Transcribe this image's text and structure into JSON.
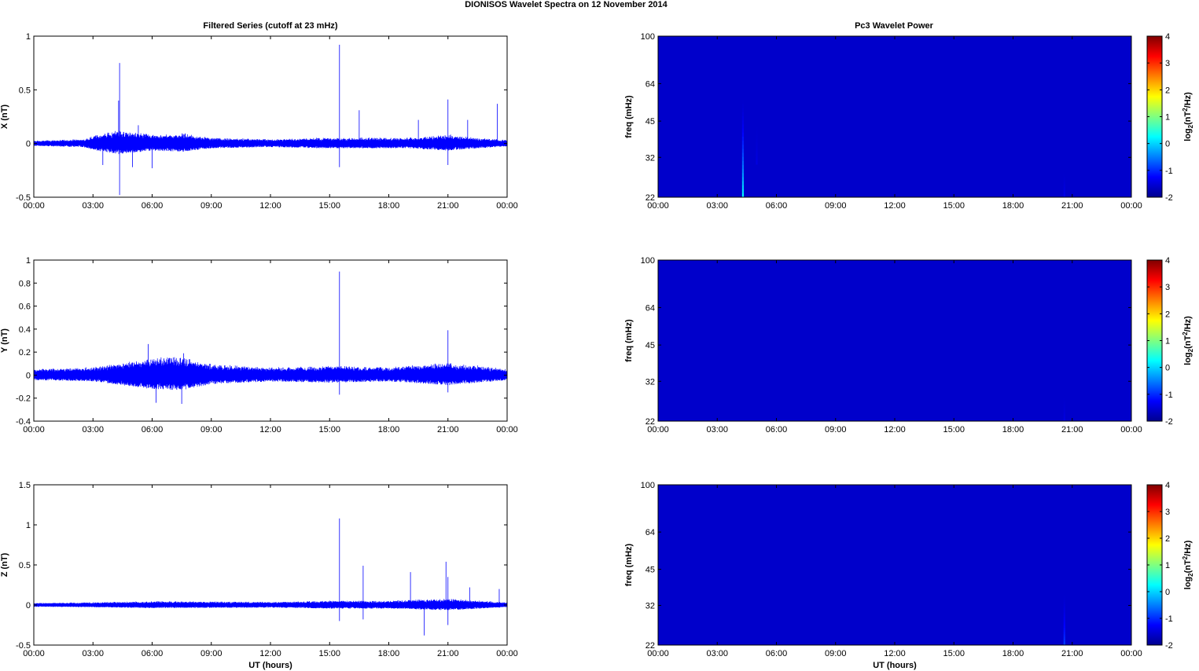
{
  "figure": {
    "title": "DIONISOS Wavelet Spectra on 12 November  2014",
    "left_column_title": "Filtered Series (cutoff at 23 mHz)",
    "right_column_title": "Pc3 Wavelet Power"
  },
  "colors": {
    "trace": "#0000ff",
    "spectrum_background": "#00008f",
    "axes": "#000000"
  },
  "chart_data": [
    {
      "type": "line",
      "id": "x",
      "ylabel": "X (nT)",
      "xlabel": "",
      "xlim": [
        0,
        24
      ],
      "ylim": [
        -0.5,
        1
      ],
      "yticks": [
        -0.5,
        0,
        0.5,
        1
      ],
      "ytick_labels": [
        "-0.5",
        "0",
        "0.5",
        "1"
      ],
      "xticks": [
        0,
        3,
        6,
        9,
        12,
        15,
        18,
        21,
        24
      ],
      "xtick_labels": [
        "00:00",
        "03:00",
        "06:00",
        "09:00",
        "12:00",
        "15:00",
        "18:00",
        "21:00",
        "00:00"
      ],
      "noise": [
        [
          0,
          0.02
        ],
        [
          2.5,
          0.03
        ],
        [
          3.2,
          0.06
        ],
        [
          4.3,
          0.09
        ],
        [
          6.0,
          0.06
        ],
        [
          7.5,
          0.07
        ],
        [
          9.0,
          0.04
        ],
        [
          12.0,
          0.03
        ],
        [
          14.5,
          0.04
        ],
        [
          16.5,
          0.04
        ],
        [
          19.0,
          0.04
        ],
        [
          21.0,
          0.06
        ],
        [
          22.5,
          0.04
        ],
        [
          24,
          0.025
        ]
      ],
      "spikes": [
        [
          4.35,
          0.75
        ],
        [
          4.35,
          -0.48
        ],
        [
          4.3,
          0.4
        ],
        [
          3.5,
          -0.2
        ],
        [
          5.0,
          -0.22
        ],
        [
          5.3,
          0.17
        ],
        [
          6.0,
          -0.23
        ],
        [
          15.5,
          0.92
        ],
        [
          15.5,
          -0.22
        ],
        [
          16.5,
          0.31
        ],
        [
          19.5,
          0.22
        ],
        [
          21.0,
          0.41
        ],
        [
          21.0,
          -0.2
        ],
        [
          22.0,
          0.22
        ],
        [
          23.5,
          0.37
        ]
      ]
    },
    {
      "type": "line",
      "id": "y",
      "ylabel": "Y (nT)",
      "xlabel": "",
      "xlim": [
        0,
        24
      ],
      "ylim": [
        -0.4,
        1
      ],
      "yticks": [
        -0.4,
        -0.2,
        0,
        0.2,
        0.4,
        0.6,
        0.8,
        1
      ],
      "ytick_labels": [
        "-0.4",
        "-0.2",
        "0",
        "0.2",
        "0.4",
        "0.6",
        "0.8",
        "1"
      ],
      "xticks": [
        0,
        3,
        6,
        9,
        12,
        15,
        18,
        21,
        24
      ],
      "xtick_labels": [
        "00:00",
        "03:00",
        "06:00",
        "09:00",
        "12:00",
        "15:00",
        "18:00",
        "21:00",
        "00:00"
      ],
      "noise": [
        [
          0,
          0.04
        ],
        [
          3.0,
          0.05
        ],
        [
          5.0,
          0.09
        ],
        [
          6.0,
          0.11
        ],
        [
          7.5,
          0.12
        ],
        [
          9.0,
          0.07
        ],
        [
          12.0,
          0.05
        ],
        [
          15.0,
          0.06
        ],
        [
          18.0,
          0.05
        ],
        [
          21.0,
          0.08
        ],
        [
          24,
          0.04
        ]
      ],
      "spikes": [
        [
          5.8,
          0.27
        ],
        [
          6.2,
          -0.24
        ],
        [
          7.5,
          -0.25
        ],
        [
          7.6,
          0.19
        ],
        [
          15.5,
          0.9
        ],
        [
          15.5,
          -0.17
        ],
        [
          21.0,
          0.39
        ],
        [
          21.0,
          -0.15
        ]
      ]
    },
    {
      "type": "line",
      "id": "z",
      "ylabel": "Z (nT)",
      "xlabel": "UT (hours)",
      "xlim": [
        0,
        24
      ],
      "ylim": [
        -0.5,
        1.5
      ],
      "yticks": [
        -0.5,
        0,
        0.5,
        1,
        1.5
      ],
      "ytick_labels": [
        "-0.5",
        "0",
        "0.5",
        "1",
        "1.5"
      ],
      "xticks": [
        0,
        3,
        6,
        9,
        12,
        15,
        18,
        21,
        24
      ],
      "xtick_labels": [
        "00:00",
        "03:00",
        "06:00",
        "09:00",
        "12:00",
        "15:00",
        "18:00",
        "21:00",
        "00:00"
      ],
      "noise": [
        [
          0,
          0.02
        ],
        [
          3.0,
          0.025
        ],
        [
          6.0,
          0.035
        ],
        [
          12.0,
          0.03
        ],
        [
          15.0,
          0.04
        ],
        [
          18.0,
          0.04
        ],
        [
          21.0,
          0.06
        ],
        [
          24,
          0.025
        ]
      ],
      "spikes": [
        [
          15.5,
          1.08
        ],
        [
          15.5,
          -0.2
        ],
        [
          16.7,
          0.49
        ],
        [
          16.7,
          -0.18
        ],
        [
          19.1,
          0.41
        ],
        [
          19.8,
          -0.38
        ],
        [
          20.9,
          0.54
        ],
        [
          21.0,
          0.35
        ],
        [
          21.0,
          -0.25
        ],
        [
          22.1,
          0.22
        ],
        [
          23.6,
          0.2
        ]
      ]
    },
    {
      "type": "heatmap",
      "id": "x-power",
      "ylabel": "freq (mHz)",
      "xlabel": "",
      "colorbar_label": "log2(nT2/Hz)",
      "xlim": [
        0,
        24
      ],
      "ylim": [
        22,
        100
      ],
      "yscale": "log",
      "clim": [
        -2,
        4
      ],
      "yticks": [
        22,
        32,
        45,
        64,
        100
      ],
      "ytick_labels": [
        "22",
        "32",
        "45",
        "64",
        "100"
      ],
      "cticks": [
        -2,
        -1,
        0,
        1,
        2,
        3,
        4
      ],
      "ctick_labels": [
        "-2",
        "-1",
        "0",
        "1",
        "2",
        "3",
        "4"
      ],
      "xticks": [
        0,
        3,
        6,
        9,
        12,
        15,
        18,
        21,
        24
      ],
      "xtick_labels": [
        "00:00",
        "03:00",
        "06:00",
        "09:00",
        "12:00",
        "15:00",
        "18:00",
        "21:00",
        "00:00"
      ],
      "background_value": -1.6,
      "streaks": [
        {
          "t": 4.3,
          "f_low": 22,
          "f_high": 55,
          "peak": 0.2
        },
        {
          "t": 5.0,
          "f_low": 30,
          "f_high": 44,
          "peak": -1.45
        },
        {
          "t": 20.6,
          "f_low": 22,
          "f_high": 28,
          "peak": -1.4
        }
      ]
    },
    {
      "type": "heatmap",
      "id": "y-power",
      "ylabel": "freq (mHz)",
      "xlabel": "",
      "colorbar_label": "log2(nT2/Hz)",
      "xlim": [
        0,
        24
      ],
      "ylim": [
        22,
        100
      ],
      "yscale": "log",
      "clim": [
        -2,
        4
      ],
      "yticks": [
        22,
        32,
        45,
        64,
        100
      ],
      "ytick_labels": [
        "22",
        "32",
        "45",
        "64",
        "100"
      ],
      "cticks": [
        -2,
        -1,
        0,
        1,
        2,
        3,
        4
      ],
      "ctick_labels": [
        "-2",
        "-1",
        "0",
        "1",
        "2",
        "3",
        "4"
      ],
      "xticks": [
        0,
        3,
        6,
        9,
        12,
        15,
        18,
        21,
        24
      ],
      "xtick_labels": [
        "00:00",
        "03:00",
        "06:00",
        "09:00",
        "12:00",
        "15:00",
        "18:00",
        "21:00",
        "00:00"
      ],
      "background_value": -1.6,
      "streaks": [
        {
          "t": 20.6,
          "f_low": 22,
          "f_high": 28,
          "peak": -1.45
        }
      ]
    },
    {
      "type": "heatmap",
      "id": "z-power",
      "ylabel": "freq (mHz)",
      "xlabel": "UT (hours)",
      "colorbar_label": "log2(nT2/Hz)",
      "xlim": [
        0,
        24
      ],
      "ylim": [
        22,
        100
      ],
      "yscale": "log",
      "clim": [
        -2,
        4
      ],
      "yticks": [
        22,
        32,
        45,
        64,
        100
      ],
      "ytick_labels": [
        "22",
        "32",
        "45",
        "64",
        "100"
      ],
      "cticks": [
        -2,
        -1,
        0,
        1,
        2,
        3,
        4
      ],
      "ctick_labels": [
        "-2",
        "-1",
        "0",
        "1",
        "2",
        "3",
        "4"
      ],
      "xticks": [
        0,
        3,
        6,
        9,
        12,
        15,
        18,
        21,
        24
      ],
      "xtick_labels": [
        "00:00",
        "03:00",
        "06:00",
        "09:00",
        "12:00",
        "15:00",
        "18:00",
        "21:00",
        "00:00"
      ],
      "background_value": -1.6,
      "streaks": [
        {
          "t": 20.6,
          "f_low": 22,
          "f_high": 36,
          "peak": -0.9
        }
      ]
    }
  ]
}
